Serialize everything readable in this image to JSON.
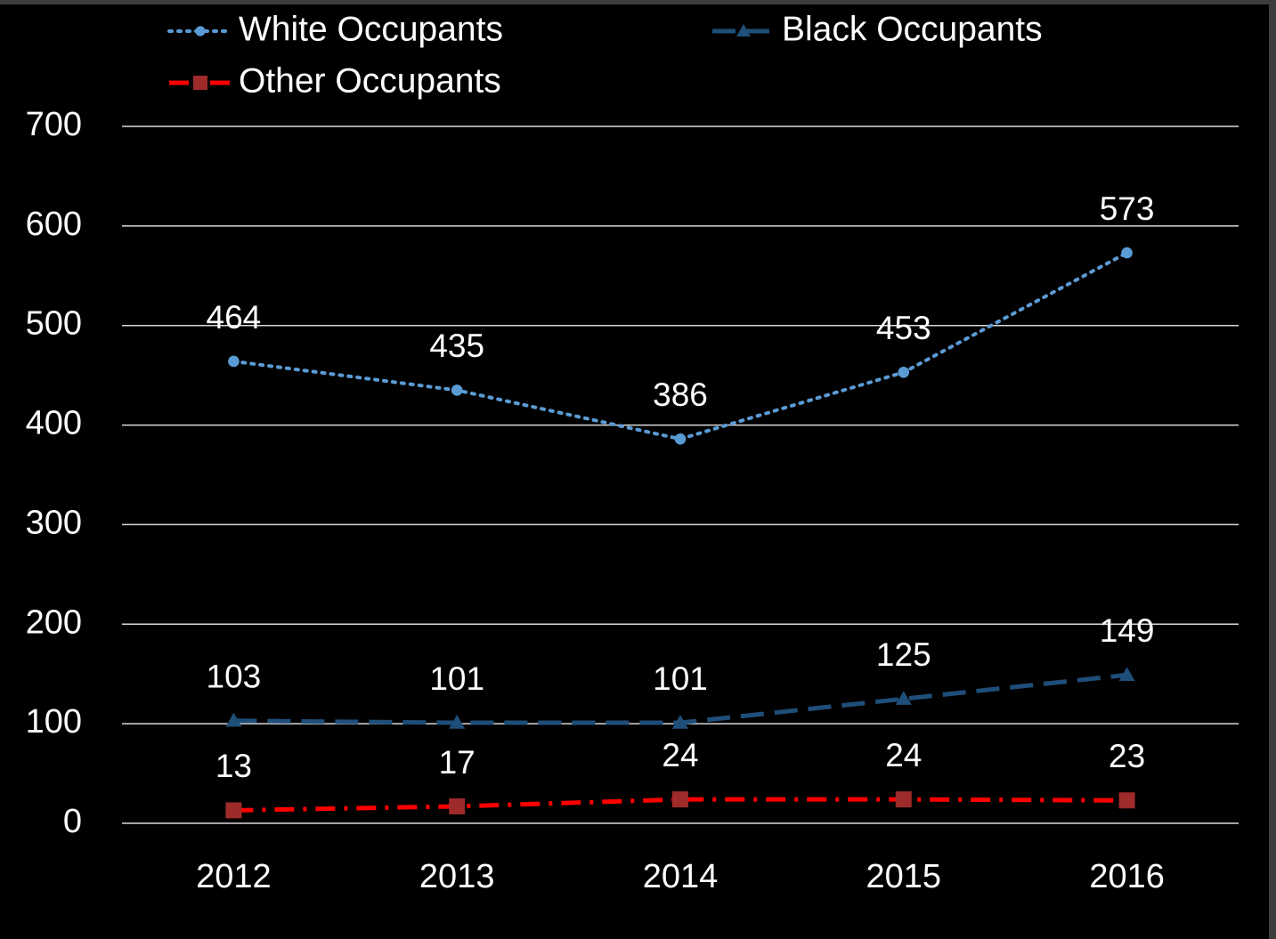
{
  "chart_data": {
    "type": "line",
    "categories": [
      "2012",
      "2013",
      "2014",
      "2015",
      "2016"
    ],
    "series": [
      {
        "name": "White Occupants",
        "color": "#5b9bd5",
        "marker_color": "#5b9bd5",
        "marker": "circle",
        "line_style": "dotted",
        "values": [
          464,
          435,
          386,
          453,
          573
        ]
      },
      {
        "name": "Black Occupants",
        "color": "#1f4e79",
        "marker_color": "#1f4e79",
        "marker": "triangle",
        "line_style": "dashed",
        "values": [
          103,
          101,
          101,
          125,
          149
        ]
      },
      {
        "name": "Other Occupants",
        "color": "#ff0000",
        "marker_color": "#9e2a2a",
        "marker": "square",
        "line_style": "dashdot",
        "values": [
          13,
          17,
          24,
          24,
          23
        ]
      }
    ],
    "ylim": [
      0,
      700
    ],
    "yticks": [
      0,
      100,
      200,
      300,
      400,
      500,
      600,
      700
    ],
    "grid": true,
    "legend": "top"
  }
}
